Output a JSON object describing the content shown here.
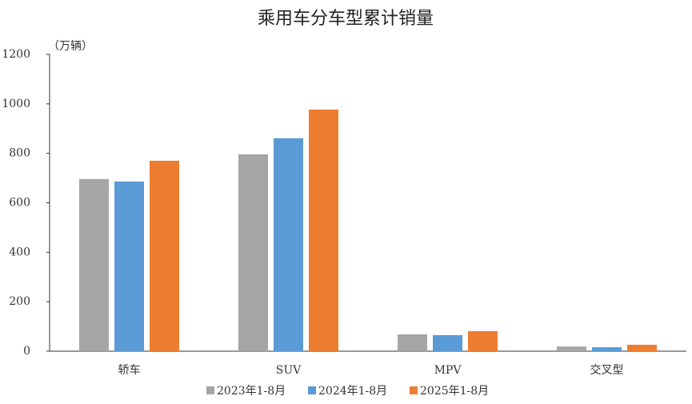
{
  "chart_data": {
    "type": "bar",
    "title": "乘用车分车型累计销量",
    "y_unit": "（万辆）",
    "categories": [
      "轿车",
      "SUV",
      "MPV",
      "交叉型"
    ],
    "series": [
      {
        "name": "2023年1-8月",
        "color": "#a5a5a5",
        "values": [
          696,
          796,
          68,
          19
        ]
      },
      {
        "name": "2024年1-8月",
        "color": "#5b9bd5",
        "values": [
          686,
          861,
          65,
          16
        ]
      },
      {
        "name": "2025年1-8月",
        "color": "#ed7d31",
        "values": [
          770,
          977,
          81,
          26
        ]
      }
    ],
    "ylim": [
      0,
      1200
    ],
    "yticks": [
      0,
      200,
      400,
      600,
      800,
      1000,
      1200
    ],
    "grid": false,
    "legend": "bottom"
  }
}
